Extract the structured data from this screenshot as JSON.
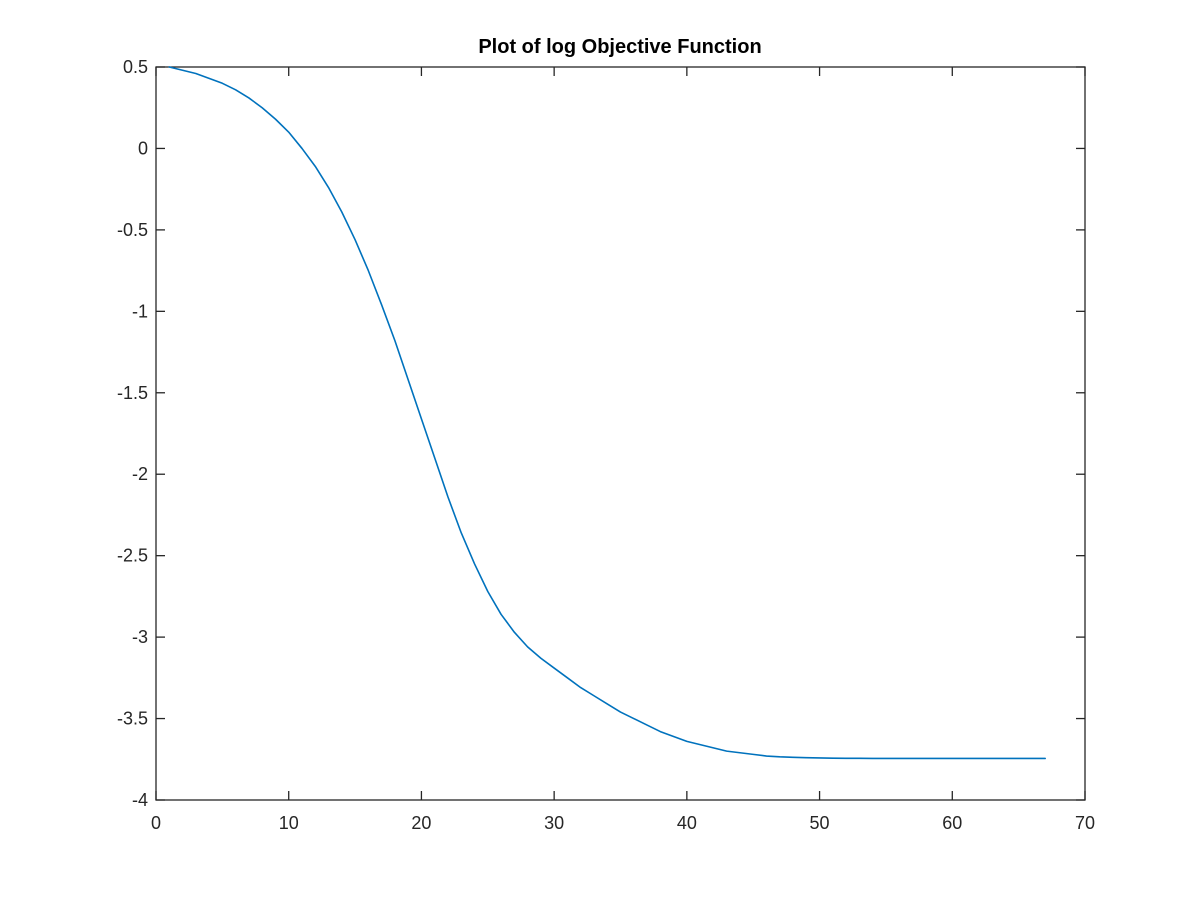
{
  "chart_data": {
    "type": "line",
    "title": "Plot of log Objective Function",
    "xlabel": "",
    "ylabel": "",
    "xlim": [
      0,
      70
    ],
    "ylim": [
      -4,
      0.5
    ],
    "xticks": [
      0,
      10,
      20,
      30,
      40,
      50,
      60,
      70
    ],
    "yticks": [
      0.5,
      0,
      -0.5,
      -1,
      -1.5,
      -2,
      -2.5,
      -3,
      -3.5,
      -4
    ],
    "xtick_labels": [
      "0",
      "10",
      "20",
      "30",
      "40",
      "50",
      "60",
      "70"
    ],
    "ytick_labels": [
      "0.5",
      "0",
      "-0.5",
      "-1",
      "-1.5",
      "-2",
      "-2.5",
      "-3",
      "-3.5",
      "-4"
    ],
    "grid": false,
    "line_color": "#0072BD",
    "series": [
      {
        "x": [
          1,
          2,
          3,
          4,
          5,
          6,
          7,
          8,
          9,
          10,
          11,
          12,
          13,
          14,
          15,
          16,
          17,
          18,
          19,
          20,
          21,
          22,
          23,
          24,
          25,
          26,
          27,
          28,
          29,
          30,
          31,
          32,
          33,
          34,
          35,
          36,
          37,
          38,
          39,
          40,
          41,
          42,
          43,
          44,
          45,
          46,
          47,
          48,
          49,
          50,
          51,
          52,
          53,
          54,
          55,
          56,
          57,
          58,
          59,
          60,
          61,
          62,
          63,
          64,
          65,
          66,
          67
        ],
        "values": [
          0.5,
          0.48,
          0.46,
          0.43,
          0.4,
          0.36,
          0.31,
          0.25,
          0.18,
          0.1,
          0.0,
          -0.11,
          -0.24,
          -0.39,
          -0.56,
          -0.75,
          -0.96,
          -1.18,
          -1.42,
          -1.66,
          -1.9,
          -2.14,
          -2.36,
          -2.55,
          -2.72,
          -2.86,
          -2.97,
          -3.06,
          -3.13,
          -3.19,
          -3.25,
          -3.31,
          -3.36,
          -3.41,
          -3.46,
          -3.5,
          -3.54,
          -3.58,
          -3.61,
          -3.64,
          -3.66,
          -3.68,
          -3.7,
          -3.71,
          -3.72,
          -3.73,
          -3.735,
          -3.738,
          -3.74,
          -3.742,
          -3.743,
          -3.744,
          -3.744,
          -3.745,
          -3.745,
          -3.745,
          -3.745,
          -3.745,
          -3.745,
          -3.745,
          -3.745,
          -3.745,
          -3.745,
          -3.745,
          -3.745,
          -3.745,
          -3.745
        ]
      }
    ]
  }
}
